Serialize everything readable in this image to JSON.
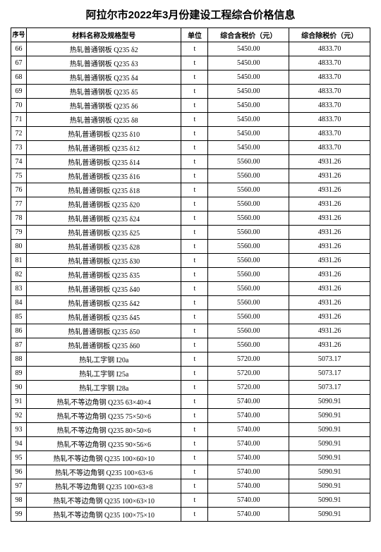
{
  "title": "阿拉尔市2022年3月份建设工程综合价格信息",
  "columns": {
    "seq": "序号",
    "name": "材料名称及规格型号",
    "unit": "单位",
    "price_with_tax": "综合含税价（元）",
    "price_without_tax": "综合除税价（元）"
  },
  "rows": [
    {
      "seq": "66",
      "name": "热轧普通钢板 Q235 δ2",
      "unit": "t",
      "price_with_tax": "5450.00",
      "price_without_tax": "4833.70"
    },
    {
      "seq": "67",
      "name": "热轧普通钢板 Q235 δ3",
      "unit": "t",
      "price_with_tax": "5450.00",
      "price_without_tax": "4833.70"
    },
    {
      "seq": "68",
      "name": "热轧普通钢板 Q235 δ4",
      "unit": "t",
      "price_with_tax": "5450.00",
      "price_without_tax": "4833.70"
    },
    {
      "seq": "69",
      "name": "热轧普通钢板 Q235 δ5",
      "unit": "t",
      "price_with_tax": "5450.00",
      "price_without_tax": "4833.70"
    },
    {
      "seq": "70",
      "name": "热轧普通钢板 Q235 δ6",
      "unit": "t",
      "price_with_tax": "5450.00",
      "price_without_tax": "4833.70"
    },
    {
      "seq": "71",
      "name": "热轧普通钢板 Q235 δ8",
      "unit": "t",
      "price_with_tax": "5450.00",
      "price_without_tax": "4833.70"
    },
    {
      "seq": "72",
      "name": "热轧普通钢板 Q235 δ10",
      "unit": "t",
      "price_with_tax": "5450.00",
      "price_without_tax": "4833.70"
    },
    {
      "seq": "73",
      "name": "热轧普通钢板 Q235 δ12",
      "unit": "t",
      "price_with_tax": "5450.00",
      "price_without_tax": "4833.70"
    },
    {
      "seq": "74",
      "name": "热轧普通钢板 Q235 δ14",
      "unit": "t",
      "price_with_tax": "5560.00",
      "price_without_tax": "4931.26"
    },
    {
      "seq": "75",
      "name": "热轧普通钢板 Q235 δ16",
      "unit": "t",
      "price_with_tax": "5560.00",
      "price_without_tax": "4931.26"
    },
    {
      "seq": "76",
      "name": "热轧普通钢板 Q235 δ18",
      "unit": "t",
      "price_with_tax": "5560.00",
      "price_without_tax": "4931.26"
    },
    {
      "seq": "77",
      "name": "热轧普通钢板 Q235 δ20",
      "unit": "t",
      "price_with_tax": "5560.00",
      "price_without_tax": "4931.26"
    },
    {
      "seq": "78",
      "name": "热轧普通钢板 Q235 δ24",
      "unit": "t",
      "price_with_tax": "5560.00",
      "price_without_tax": "4931.26"
    },
    {
      "seq": "79",
      "name": "热轧普通钢板 Q235 δ25",
      "unit": "t",
      "price_with_tax": "5560.00",
      "price_without_tax": "4931.26"
    },
    {
      "seq": "80",
      "name": "热轧普通钢板 Q235 δ28",
      "unit": "t",
      "price_with_tax": "5560.00",
      "price_without_tax": "4931.26"
    },
    {
      "seq": "81",
      "name": "热轧普通钢板 Q235 δ30",
      "unit": "t",
      "price_with_tax": "5560.00",
      "price_without_tax": "4931.26"
    },
    {
      "seq": "82",
      "name": "热轧普通钢板 Q235 δ35",
      "unit": "t",
      "price_with_tax": "5560.00",
      "price_without_tax": "4931.26"
    },
    {
      "seq": "83",
      "name": "热轧普通钢板 Q235 δ40",
      "unit": "t",
      "price_with_tax": "5560.00",
      "price_without_tax": "4931.26"
    },
    {
      "seq": "84",
      "name": "热轧普通钢板 Q235 δ42",
      "unit": "t",
      "price_with_tax": "5560.00",
      "price_without_tax": "4931.26"
    },
    {
      "seq": "85",
      "name": "热轧普通钢板 Q235 δ45",
      "unit": "t",
      "price_with_tax": "5560.00",
      "price_without_tax": "4931.26"
    },
    {
      "seq": "86",
      "name": "热轧普通钢板 Q235 δ50",
      "unit": "t",
      "price_with_tax": "5560.00",
      "price_without_tax": "4931.26"
    },
    {
      "seq": "87",
      "name": "热轧普通钢板 Q235 δ60",
      "unit": "t",
      "price_with_tax": "5560.00",
      "price_without_tax": "4931.26"
    },
    {
      "seq": "88",
      "name": "热轧工字钢 I20a",
      "unit": "t",
      "price_with_tax": "5720.00",
      "price_without_tax": "5073.17"
    },
    {
      "seq": "89",
      "name": "热轧工字钢 I25a",
      "unit": "t",
      "price_with_tax": "5720.00",
      "price_without_tax": "5073.17"
    },
    {
      "seq": "90",
      "name": "热轧工字钢 I28a",
      "unit": "t",
      "price_with_tax": "5720.00",
      "price_without_tax": "5073.17"
    },
    {
      "seq": "91",
      "name": "热轧不等边角钢 Q235 63×40×4",
      "unit": "t",
      "price_with_tax": "5740.00",
      "price_without_tax": "5090.91"
    },
    {
      "seq": "92",
      "name": "热轧不等边角钢 Q235 75×50×6",
      "unit": "t",
      "price_with_tax": "5740.00",
      "price_without_tax": "5090.91"
    },
    {
      "seq": "93",
      "name": "热轧不等边角钢 Q235 80×50×6",
      "unit": "t",
      "price_with_tax": "5740.00",
      "price_without_tax": "5090.91"
    },
    {
      "seq": "94",
      "name": "热轧不等边角钢 Q235 90×56×6",
      "unit": "t",
      "price_with_tax": "5740.00",
      "price_without_tax": "5090.91"
    },
    {
      "seq": "95",
      "name": "热轧不等边角钢 Q235 100×60×10",
      "unit": "t",
      "price_with_tax": "5740.00",
      "price_without_tax": "5090.91"
    },
    {
      "seq": "96",
      "name": "热轧不等边角钢  Q235 100×63×6",
      "unit": "t",
      "price_with_tax": "5740.00",
      "price_without_tax": "5090.91"
    },
    {
      "seq": "97",
      "name": "热轧不等边角钢  Q235 100×63×8",
      "unit": "t",
      "price_with_tax": "5740.00",
      "price_without_tax": "5090.91"
    },
    {
      "seq": "98",
      "name": "热轧不等边角钢  Q235 100×63×10",
      "unit": "t",
      "price_with_tax": "5740.00",
      "price_without_tax": "5090.91"
    },
    {
      "seq": "99",
      "name": "热轧不等边角钢  Q235 100×75×10",
      "unit": "t",
      "price_with_tax": "5740.00",
      "price_without_tax": "5090.91"
    }
  ]
}
